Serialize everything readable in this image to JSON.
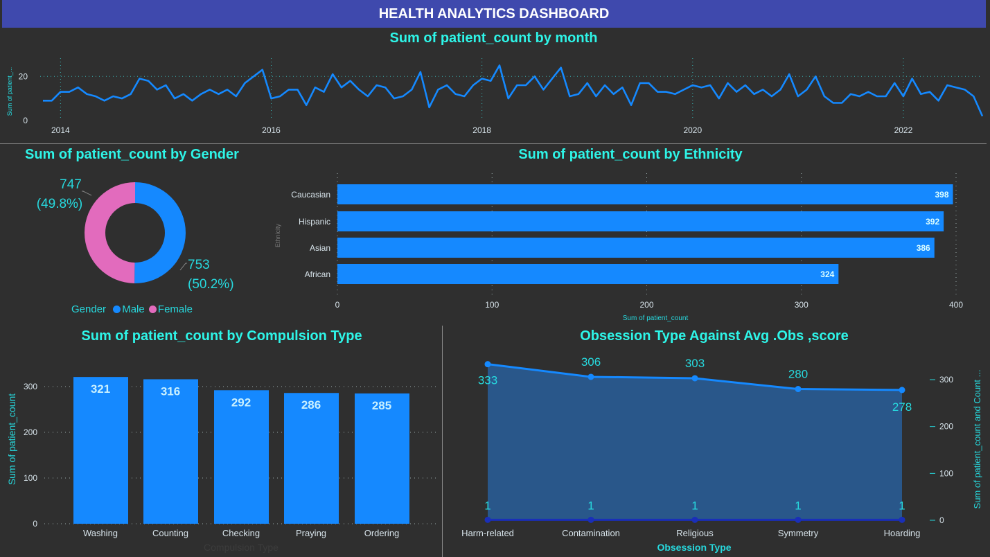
{
  "header": {
    "title": "HEALTH ANALYTICS DASHBOARD"
  },
  "colors": {
    "accent_text": "#2ef5e8",
    "bar": "#1589ff",
    "female": "#e26bbd",
    "male": "#1589ff",
    "banner": "#3f49ad",
    "background": "#2f2f2f"
  },
  "monthly": {
    "title": "Sum of patient_count by month",
    "ylabel": "Sum of patient_...",
    "yticks": [
      "0",
      "20"
    ],
    "xticks": [
      "2014",
      "2016",
      "2018",
      "2020",
      "2022"
    ]
  },
  "gender": {
    "title": "Sum of patient_count by Gender",
    "legend_title": "Gender",
    "female_value": "747",
    "female_pct": "(49.8%)",
    "male_value": "753",
    "male_pct": "(50.2%)",
    "legend": [
      "Male",
      "Female"
    ]
  },
  "ethnicity": {
    "title": "Sum of patient_count by Ethnicity",
    "ylabel": "Ethnicity",
    "xlabel": "Sum of patient_count",
    "xticks": [
      "0",
      "100",
      "200",
      "300",
      "400"
    ]
  },
  "compulsion": {
    "title": "Sum of patient_count by Compulsion Type",
    "ylabel": "Sum of patient_count",
    "xlabel": "Compulsion Type",
    "yticks": [
      "0",
      "100",
      "200",
      "300"
    ]
  },
  "obsession": {
    "title": "Obsession Type Against Avg .Obs ,score",
    "xlabel": "Obsession Type",
    "ylabel": "Sum of patient_count and Count ...",
    "yticks": [
      "0",
      "100",
      "200",
      "300"
    ]
  },
  "chart_data": [
    {
      "type": "line",
      "title": "Sum of patient_count by month",
      "ylabel": "Sum of patient_...",
      "x_start": "2013-11",
      "x_end": "2022-11",
      "ylim": [
        0,
        27
      ],
      "values": [
        9,
        9,
        13,
        13,
        15,
        12,
        11,
        9,
        11,
        10,
        12,
        19,
        18,
        14,
        16,
        10,
        12,
        9,
        12,
        14,
        12,
        14,
        11,
        17,
        20,
        23,
        10,
        11,
        14,
        14,
        7,
        15,
        13,
        21,
        15,
        18,
        14,
        11,
        16,
        15,
        10,
        11,
        14,
        22,
        6,
        14,
        16,
        12,
        11,
        16,
        19,
        18,
        25,
        10,
        16,
        16,
        20,
        14,
        19,
        24,
        11,
        12,
        17,
        11,
        16,
        12,
        15,
        7,
        17,
        17,
        13,
        13,
        12,
        14,
        16,
        15,
        16,
        10,
        17,
        13,
        16,
        12,
        14,
        11,
        14,
        21,
        11,
        14,
        20,
        11,
        8,
        8,
        12,
        11,
        13,
        11,
        11,
        17,
        11,
        19,
        12,
        13,
        9,
        16,
        15,
        14,
        11,
        2
      ]
    },
    {
      "type": "pie",
      "title": "Sum of patient_count by Gender",
      "categories": [
        "Male",
        "Female"
      ],
      "values": [
        753,
        747
      ]
    },
    {
      "type": "bar",
      "orientation": "horizontal",
      "title": "Sum of patient_count by Ethnicity",
      "categories": [
        "Caucasian",
        "Hispanic",
        "Asian",
        "African"
      ],
      "values": [
        398,
        392,
        386,
        324
      ],
      "xlim": [
        0,
        400
      ]
    },
    {
      "type": "bar",
      "title": "Sum of patient_count by Compulsion Type",
      "categories": [
        "Washing",
        "Counting",
        "Checking",
        "Praying",
        "Ordering"
      ],
      "values": [
        321,
        316,
        292,
        286,
        285
      ],
      "ylim": [
        0,
        330
      ]
    },
    {
      "type": "area",
      "title": "Obsession Type Against Avg .Obs ,score",
      "categories": [
        "Harm-related",
        "Contamination",
        "Religious",
        "Symmetry",
        "Hoarding"
      ],
      "series": [
        {
          "values": [
            333,
            306,
            303,
            280,
            278
          ]
        },
        {
          "values": [
            1,
            1,
            1,
            1,
            1
          ]
        }
      ],
      "ylim": [
        0,
        340
      ]
    }
  ]
}
